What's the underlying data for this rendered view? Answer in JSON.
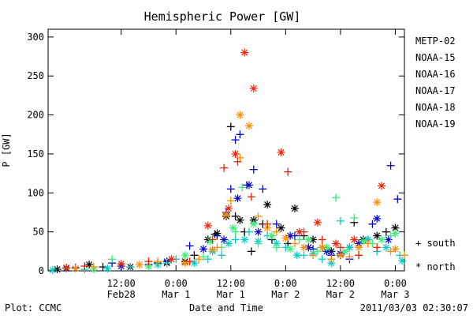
{
  "chart_data": {
    "type": "scatter",
    "title": "Hemispheric Power [GW]",
    "xlabel": "Date and Time",
    "ylabel": "P [GW]",
    "footer_left": "Plot: CCMC",
    "footer_right": "2011/03/03 02:30:07",
    "xlim": [
      "2011-02-27T20:00",
      "2011-03-03T02:00"
    ],
    "ylim": [
      0,
      310
    ],
    "yticks": [
      0,
      50,
      100,
      150,
      200,
      250,
      300
    ],
    "xticks": [
      {
        "t": "2011-02-28T12:00",
        "line1": "12:00",
        "line2": "Feb28"
      },
      {
        "t": "2011-03-01T00:00",
        "line1": "0:00",
        "line2": "Mar 1"
      },
      {
        "t": "2011-03-01T12:00",
        "line1": "12:00",
        "line2": "Mar 1"
      },
      {
        "t": "2011-03-02T00:00",
        "line1": "0:00",
        "line2": "Mar 2"
      },
      {
        "t": "2011-03-02T12:00",
        "line1": "12:00",
        "line2": "Mar 2"
      },
      {
        "t": "2011-03-03T00:00",
        "line1": "0:00",
        "line2": "Mar 3"
      }
    ],
    "grid": false,
    "legend_position": "right",
    "marker_legend": [
      {
        "marker": "+",
        "label": "south"
      },
      {
        "marker": "*",
        "label": "north"
      }
    ],
    "series": [
      {
        "name": "METP-02",
        "color": "#000000",
        "south": [
          [
            "2011-02-28T08:00",
            5
          ],
          [
            "2011-02-28T20:00",
            10
          ],
          [
            "2011-03-01T04:00",
            20
          ],
          [
            "2011-03-01T08:30",
            47
          ],
          [
            "2011-03-01T12:00",
            185
          ],
          [
            "2011-03-01T13:00",
            70
          ],
          [
            "2011-03-01T15:00",
            50
          ],
          [
            "2011-03-01T16:30",
            25
          ],
          [
            "2011-03-01T19:00",
            60
          ],
          [
            "2011-03-01T21:00",
            40
          ],
          [
            "2011-03-02T00:30",
            35
          ],
          [
            "2011-03-02T04:00",
            45
          ],
          [
            "2011-03-02T08:00",
            30
          ],
          [
            "2011-03-02T12:00",
            20
          ],
          [
            "2011-03-02T15:00",
            62
          ],
          [
            "2011-03-02T18:00",
            40
          ],
          [
            "2011-03-02T22:00",
            50
          ]
        ],
        "north": [
          [
            "2011-02-27T22:00",
            2
          ],
          [
            "2011-02-28T05:00",
            8
          ],
          [
            "2011-02-28T14:00",
            5
          ],
          [
            "2011-02-28T22:00",
            10
          ],
          [
            "2011-03-01T02:00",
            12
          ],
          [
            "2011-03-01T07:00",
            40
          ],
          [
            "2011-03-01T09:00",
            48
          ],
          [
            "2011-03-01T11:00",
            70
          ],
          [
            "2011-03-01T14:00",
            65
          ],
          [
            "2011-03-01T17:00",
            65
          ],
          [
            "2011-03-01T20:00",
            85
          ],
          [
            "2011-03-01T23:00",
            55
          ],
          [
            "2011-03-02T02:00",
            80
          ],
          [
            "2011-03-02T06:00",
            40
          ],
          [
            "2011-03-02T10:00",
            25
          ],
          [
            "2011-03-02T14:00",
            30
          ],
          [
            "2011-03-02T17:00",
            40
          ],
          [
            "2011-03-02T20:00",
            45
          ],
          [
            "2011-03-03T00:00",
            55
          ]
        ]
      },
      {
        "name": "NOAA-15",
        "color": "#0000cc",
        "south": [
          [
            "2011-02-28T02:00",
            4
          ],
          [
            "2011-02-28T10:00",
            10
          ],
          [
            "2011-02-28T18:00",
            8
          ],
          [
            "2011-03-01T03:00",
            32
          ],
          [
            "2011-03-01T09:00",
            45
          ],
          [
            "2011-03-01T11:00",
            75
          ],
          [
            "2011-03-01T12:00",
            105
          ],
          [
            "2011-03-01T13:00",
            168
          ],
          [
            "2011-03-01T14:00",
            175
          ],
          [
            "2011-03-01T15:30",
            110
          ],
          [
            "2011-03-01T17:00",
            130
          ],
          [
            "2011-03-01T19:00",
            105
          ],
          [
            "2011-03-01T22:00",
            60
          ],
          [
            "2011-03-02T02:00",
            45
          ],
          [
            "2011-03-02T06:00",
            28
          ],
          [
            "2011-03-02T10:00",
            20
          ],
          [
            "2011-03-02T14:00",
            15
          ],
          [
            "2011-03-02T19:00",
            60
          ],
          [
            "2011-03-02T23:00",
            135
          ],
          [
            "2011-03-03T00:30",
            92
          ]
        ],
        "north": [
          [
            "2011-02-28T00:00",
            3
          ],
          [
            "2011-02-28T12:00",
            6
          ],
          [
            "2011-02-28T22:00",
            12
          ],
          [
            "2011-03-01T06:00",
            28
          ],
          [
            "2011-03-01T10:30",
            40
          ],
          [
            "2011-03-01T13:30",
            93
          ],
          [
            "2011-03-01T16:00",
            110
          ],
          [
            "2011-03-01T18:00",
            50
          ],
          [
            "2011-03-02T01:00",
            45
          ],
          [
            "2011-03-02T05:00",
            30
          ],
          [
            "2011-03-02T09:00",
            25
          ],
          [
            "2011-03-02T12:00",
            22
          ],
          [
            "2011-03-02T16:00",
            35
          ],
          [
            "2011-03-02T20:00",
            67
          ],
          [
            "2011-03-02T22:30",
            40
          ]
        ]
      },
      {
        "name": "NOAA-16",
        "color": "#00cccc",
        "south": [
          [
            "2011-02-28T04:00",
            2
          ],
          [
            "2011-02-28T14:00",
            5
          ],
          [
            "2011-03-01T00:00",
            15
          ],
          [
            "2011-03-01T07:00",
            15
          ],
          [
            "2011-03-01T10:00",
            20
          ],
          [
            "2011-03-01T13:00",
            40
          ],
          [
            "2011-03-01T16:00",
            50
          ],
          [
            "2011-03-01T20:00",
            45
          ],
          [
            "2011-03-02T00:00",
            30
          ],
          [
            "2011-03-02T04:00",
            20
          ],
          [
            "2011-03-02T08:00",
            15
          ],
          [
            "2011-03-02T12:00",
            64
          ],
          [
            "2011-03-02T16:00",
            20
          ],
          [
            "2011-03-02T20:00",
            25
          ],
          [
            "2011-03-03T01:00",
            20
          ]
        ],
        "north": [
          [
            "2011-02-27T21:00",
            1
          ],
          [
            "2011-02-28T09:00",
            3
          ],
          [
            "2011-02-28T20:00",
            8
          ],
          [
            "2011-03-01T04:00",
            10
          ],
          [
            "2011-03-01T08:00",
            25
          ],
          [
            "2011-03-01T11:30",
            35
          ],
          [
            "2011-03-01T15:00",
            40
          ],
          [
            "2011-03-01T18:00",
            38
          ],
          [
            "2011-03-01T22:00",
            35
          ],
          [
            "2011-03-02T02:30",
            20
          ],
          [
            "2011-03-02T06:00",
            22
          ],
          [
            "2011-03-02T10:00",
            10
          ],
          [
            "2011-03-02T14:00",
            30
          ],
          [
            "2011-03-02T18:00",
            40
          ],
          [
            "2011-03-02T22:00",
            30
          ],
          [
            "2011-03-03T01:30",
            13
          ]
        ]
      },
      {
        "name": "NOAA-17",
        "color": "#33ee77",
        "south": [
          [
            "2011-02-28T00:00",
            3
          ],
          [
            "2011-02-28T10:00",
            15
          ],
          [
            "2011-02-28T22:00",
            10
          ],
          [
            "2011-03-01T06:00",
            18
          ],
          [
            "2011-03-01T10:00",
            30
          ],
          [
            "2011-03-01T13:00",
            50
          ],
          [
            "2011-03-01T14:30",
            107
          ],
          [
            "2011-03-01T18:00",
            35
          ],
          [
            "2011-03-01T22:00",
            30
          ],
          [
            "2011-03-02T03:00",
            40
          ],
          [
            "2011-03-02T07:00",
            25
          ],
          [
            "2011-03-02T11:00",
            94
          ],
          [
            "2011-03-02T15:00",
            68
          ],
          [
            "2011-03-02T19:00",
            35
          ],
          [
            "2011-03-02T23:00",
            45
          ]
        ],
        "north": [
          [
            "2011-02-28T06:00",
            2
          ],
          [
            "2011-02-28T18:00",
            6
          ],
          [
            "2011-03-01T02:00",
            20
          ],
          [
            "2011-03-01T07:30",
            38
          ],
          [
            "2011-03-01T12:30",
            55
          ],
          [
            "2011-03-01T17:00",
            60
          ],
          [
            "2011-03-01T21:00",
            45
          ],
          [
            "2011-03-02T01:00",
            28
          ],
          [
            "2011-03-02T05:00",
            40
          ],
          [
            "2011-03-02T09:00",
            30
          ],
          [
            "2011-03-02T13:00",
            25
          ],
          [
            "2011-03-02T17:00",
            38
          ],
          [
            "2011-03-02T21:00",
            40
          ],
          [
            "2011-03-03T00:00",
            48
          ]
        ]
      },
      {
        "name": "NOAA-18",
        "color": "#ff8c00",
        "south": [
          [
            "2011-02-28T06:00",
            5
          ],
          [
            "2011-02-28T20:00",
            12
          ],
          [
            "2011-03-01T05:00",
            15
          ],
          [
            "2011-03-01T09:00",
            30
          ],
          [
            "2011-03-01T12:00",
            90
          ],
          [
            "2011-03-01T14:00",
            145
          ],
          [
            "2011-03-01T18:00",
            70
          ],
          [
            "2011-03-01T22:00",
            50
          ],
          [
            "2011-03-02T02:00",
            35
          ],
          [
            "2011-03-02T06:00",
            20
          ],
          [
            "2011-03-02T10:00",
            15
          ],
          [
            "2011-03-02T14:00",
            18
          ],
          [
            "2011-03-02T18:00",
            35
          ],
          [
            "2011-03-02T23:00",
            25
          ],
          [
            "2011-03-03T02:00",
            20
          ]
        ],
        "north": [
          [
            "2011-02-28T02:00",
            3
          ],
          [
            "2011-02-28T16:00",
            8
          ],
          [
            "2011-03-01T02:00",
            10
          ],
          [
            "2011-03-01T08:00",
            27
          ],
          [
            "2011-03-01T11:00",
            72
          ],
          [
            "2011-03-01T14:00",
            200
          ],
          [
            "2011-03-01T16:00",
            186
          ],
          [
            "2011-03-01T20:00",
            55
          ],
          [
            "2011-03-02T00:00",
            42
          ],
          [
            "2011-03-02T04:00",
            30
          ],
          [
            "2011-03-02T08:00",
            30
          ],
          [
            "2011-03-02T12:00",
            20
          ],
          [
            "2011-03-02T16:00",
            30
          ],
          [
            "2011-03-02T20:00",
            88
          ],
          [
            "2011-03-03T00:00",
            28
          ]
        ]
      },
      {
        "name": "NOAA-19",
        "color": "#ee2200",
        "south": [
          [
            "2011-02-28T04:00",
            6
          ],
          [
            "2011-02-28T18:00",
            12
          ],
          [
            "2011-03-01T03:00",
            12
          ],
          [
            "2011-03-01T08:00",
            40
          ],
          [
            "2011-03-01T10:30",
            132
          ],
          [
            "2011-03-01T13:30",
            140
          ],
          [
            "2011-03-01T16:30",
            95
          ],
          [
            "2011-03-01T20:00",
            60
          ],
          [
            "2011-03-02T00:30",
            127
          ],
          [
            "2011-03-02T04:00",
            50
          ],
          [
            "2011-03-02T08:00",
            40
          ],
          [
            "2011-03-02T12:00",
            30
          ],
          [
            "2011-03-02T16:00",
            20
          ],
          [
            "2011-03-02T20:00",
            30
          ]
        ],
        "north": [
          [
            "2011-02-28T00:00",
            4
          ],
          [
            "2011-02-28T12:00",
            9
          ],
          [
            "2011-02-28T23:00",
            15
          ],
          [
            "2011-03-01T07:00",
            58
          ],
          [
            "2011-03-01T11:30",
            80
          ],
          [
            "2011-03-01T13:00",
            150
          ],
          [
            "2011-03-01T15:00",
            280
          ],
          [
            "2011-03-01T17:00",
            234
          ],
          [
            "2011-03-01T23:00",
            152
          ],
          [
            "2011-03-02T03:00",
            50
          ],
          [
            "2011-03-02T07:00",
            62
          ],
          [
            "2011-03-02T11:00",
            35
          ],
          [
            "2011-03-02T15:00",
            40
          ],
          [
            "2011-03-02T21:00",
            109
          ]
        ]
      }
    ]
  }
}
